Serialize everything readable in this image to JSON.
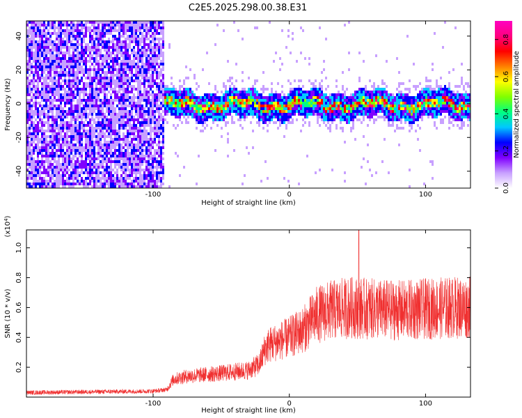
{
  "title": "C2E5.2025.298.00.38.E31",
  "chart_data": [
    {
      "type": "heatmap",
      "name": "spectrogram",
      "xlabel": "Height of straight line (km)",
      "ylabel": "Frequency (Hz)",
      "xlim": [
        -193,
        133
      ],
      "ylim": [
        -50,
        49
      ],
      "xticks": [
        -100,
        0,
        100
      ],
      "xtick_labels": [
        "-100",
        "0",
        "100"
      ],
      "yticks": [
        -40,
        -20,
        0,
        20,
        40
      ],
      "ytick_labels": [
        "-40",
        "-20",
        "0",
        "20",
        "40"
      ],
      "noise_region_x": [
        -193,
        -92
      ],
      "signal_center_hz": 0,
      "signal_halfwidth_hz": 8,
      "colorbar": {
        "label": "Normalized spectral amplitude",
        "range": [
          0,
          0.9
        ],
        "ticks": [
          0,
          0.2,
          0.4,
          0.6,
          0.8
        ],
        "tick_labels": [
          "0.0",
          "0.2",
          "0.4",
          "0.6",
          "0.8"
        ],
        "colors": [
          "#ffffff",
          "#c8a0ff",
          "#8000ff",
          "#0000ff",
          "#00c8ff",
          "#00ff80",
          "#80ff00",
          "#ffff00",
          "#ff8000",
          "#ff0000",
          "#ff0080",
          "#ff00c0"
        ]
      }
    },
    {
      "type": "line",
      "name": "snr",
      "xlabel": "Height of straight line (km)",
      "ylabel": "SNR (10 * v/v)",
      "y_multiplier_label": "(x10",
      "y_multiplier_exp": "4",
      "y_multiplier_close": ")",
      "xlim": [
        -193,
        133
      ],
      "ylim": [
        0,
        1.12
      ],
      "xticks": [
        -100,
        0,
        100
      ],
      "xtick_labels": [
        "-100",
        "0",
        "100"
      ],
      "yticks": [
        0.2,
        0.4,
        0.6,
        0.8,
        1.0
      ],
      "ytick_labels": [
        "0.2",
        "0.4",
        "0.6",
        "0.8",
        "1.0"
      ],
      "color": "#f03030",
      "trend": {
        "x": [
          -193,
          -100,
          -90,
          -85,
          -75,
          -50,
          -30,
          -22,
          -18,
          -15,
          0,
          10,
          20,
          30,
          45,
          60,
          80,
          100,
          120,
          133
        ],
        "y": [
          0.03,
          0.04,
          0.05,
          0.12,
          0.14,
          0.16,
          0.18,
          0.22,
          0.32,
          0.35,
          0.4,
          0.45,
          0.55,
          0.58,
          0.6,
          0.59,
          0.58,
          0.59,
          0.6,
          0.6
        ]
      },
      "peak": {
        "x": 51,
        "y": 1.12
      }
    }
  ]
}
